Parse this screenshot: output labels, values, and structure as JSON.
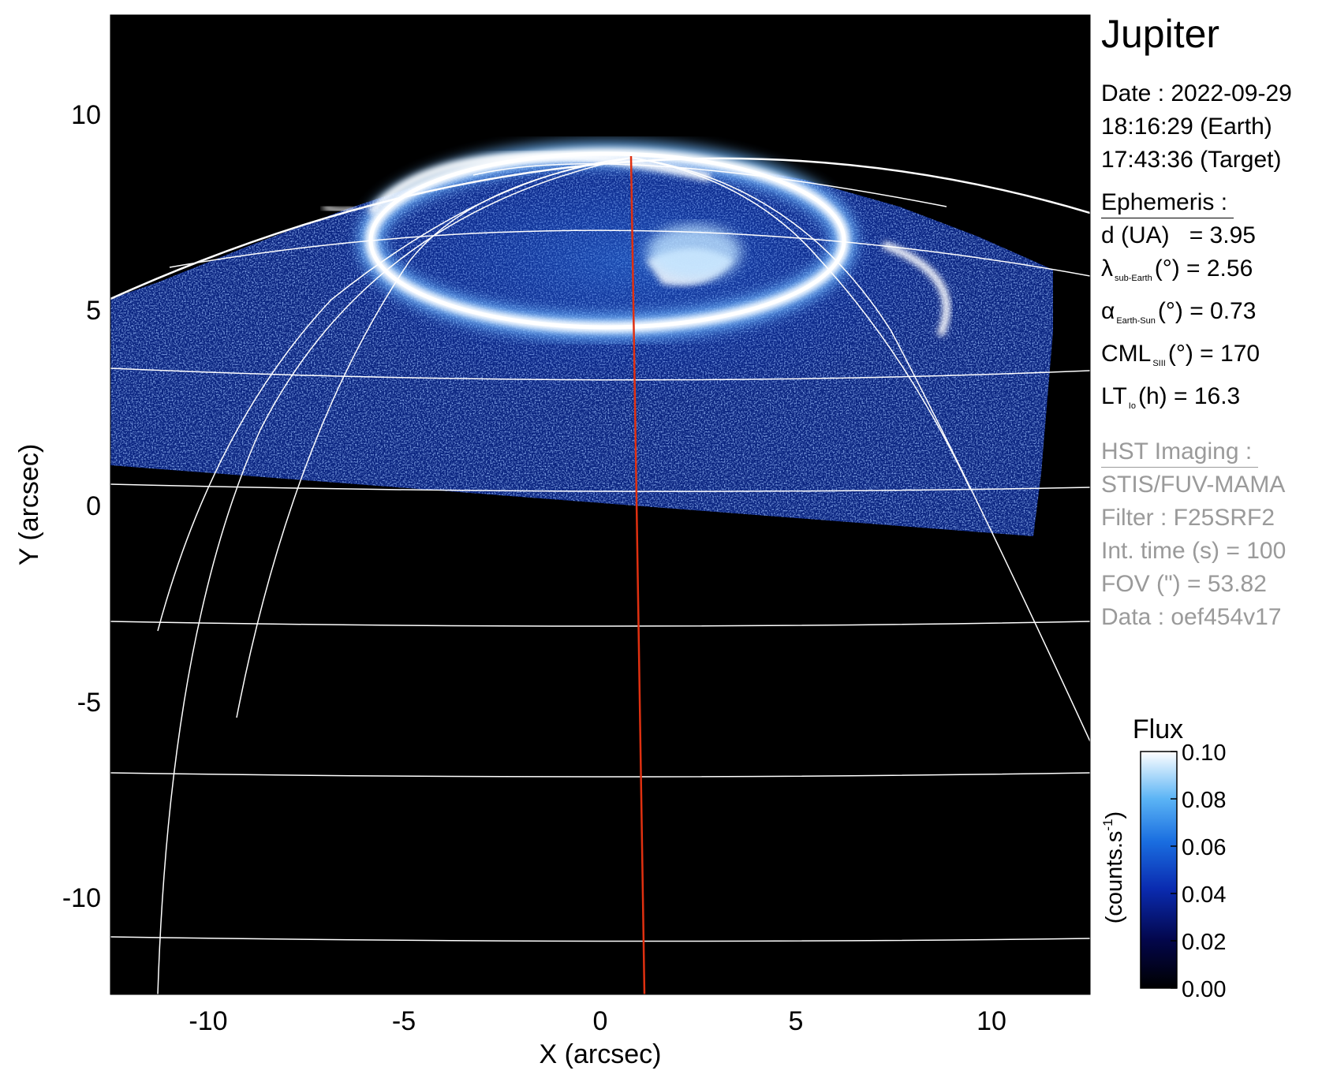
{
  "info": {
    "planet": "Jupiter",
    "date": "Date : 2022-09-29",
    "time_earth": "18:16:29 (Earth)",
    "time_target": "17:43:36 (Target)",
    "ephemeris_heading": "Ephemeris :",
    "d_label": "d (UA)",
    "d_value": "= 3.95",
    "lat_symbol": "λ",
    "lat_sub": "sub-Earth",
    "lat_value": "(°) = 2.56",
    "alpha_symbol": "α",
    "alpha_sub": "Earth-Sun",
    "alpha_value": "(°) = 0.73",
    "cml_symbol": "CML",
    "cml_sub": "SIII",
    "cml_value": "(°) = 170",
    "lt_symbol": "LT",
    "lt_sub": "Io",
    "lt_value": "(h) = 16.3",
    "hst_heading": "HST Imaging :",
    "instrument": "STIS/FUV-MAMA",
    "filter": "Filter : F25SRF2",
    "int_time": "Int. time (s) = 100",
    "fov": "FOV (\") = 53.82",
    "dataset": "Data : oef454v17"
  },
  "chart_data": {
    "type": "heatmap",
    "title": "",
    "xlabel": "X (arcsec)",
    "ylabel": "Y (arcsec)",
    "xlim": [
      -12.5,
      12.5
    ],
    "ylim": [
      -12.5,
      12.5
    ],
    "xticks": [
      -10,
      -5,
      0,
      5,
      10
    ],
    "yticks": [
      -10,
      -5,
      0,
      5,
      10
    ],
    "xtick_labels": [
      "-10",
      "-5",
      "0",
      "5",
      "10"
    ],
    "ytick_labels": [
      "-10",
      "-5",
      "0",
      "5",
      "10"
    ],
    "grid": true,
    "colorbar": {
      "title": "Flux",
      "label": "(counts.s",
      "label_exp": "-1",
      "label_close": ")",
      "range": [
        0.0,
        0.1
      ],
      "ticks": [
        0.0,
        0.02,
        0.04,
        0.06,
        0.08,
        0.1
      ],
      "tick_labels": [
        "0.00",
        "0.02",
        "0.04",
        "0.06",
        "0.08",
        "0.10"
      ],
      "colors": [
        "#000000",
        "#03064a",
        "#0a2bb0",
        "#1a6ee0",
        "#5bb4f5",
        "#ffffff"
      ]
    },
    "background_color": "#000000",
    "grid_color": "#ffffff",
    "central_meridian_color": "#e03010"
  }
}
